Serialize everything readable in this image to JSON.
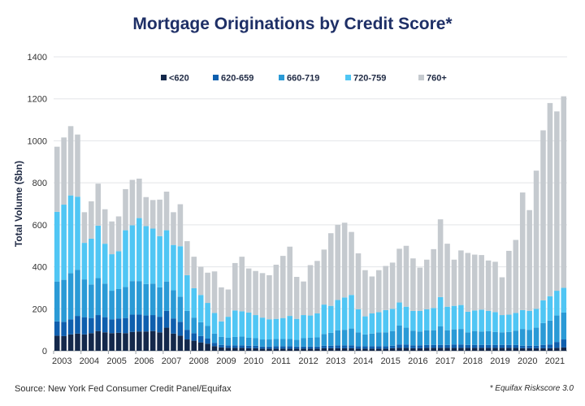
{
  "title": "Mortgage Originations by Credit Score*",
  "source": "Source: New York Fed Consumer Credit Panel/Equifax",
  "footnote": "* Equifax Riskscore 3.0",
  "chart_data": {
    "type": "bar",
    "stacked": true,
    "title": "Mortgage Originations by Credit Score*",
    "ylabel": "Total Volume ($bn)",
    "xlabel": "",
    "ylim": [
      0,
      1400
    ],
    "yticks": [
      0,
      200,
      400,
      600,
      800,
      1000,
      1200,
      1400
    ],
    "grid": "horizontal",
    "legend_position": "top",
    "x_tick_labels": [
      "2003",
      "2004",
      "2005",
      "2006",
      "2007",
      "2008",
      "2009",
      "2010",
      "2011",
      "2012",
      "2013",
      "2014",
      "2015",
      "2016",
      "2017",
      "2018",
      "2019",
      "2020",
      "2021"
    ],
    "categories": [
      "2003Q1",
      "2003Q2",
      "2003Q3",
      "2003Q4",
      "2004Q1",
      "2004Q2",
      "2004Q3",
      "2004Q4",
      "2005Q1",
      "2005Q2",
      "2005Q3",
      "2005Q4",
      "2006Q1",
      "2006Q2",
      "2006Q3",
      "2006Q4",
      "2007Q1",
      "2007Q2",
      "2007Q3",
      "2007Q4",
      "2008Q1",
      "2008Q2",
      "2008Q3",
      "2008Q4",
      "2009Q1",
      "2009Q2",
      "2009Q3",
      "2009Q4",
      "2010Q1",
      "2010Q2",
      "2010Q3",
      "2010Q4",
      "2011Q1",
      "2011Q2",
      "2011Q3",
      "2011Q4",
      "2012Q1",
      "2012Q2",
      "2012Q3",
      "2012Q4",
      "2013Q1",
      "2013Q2",
      "2013Q3",
      "2013Q4",
      "2014Q1",
      "2014Q2",
      "2014Q3",
      "2014Q4",
      "2015Q1",
      "2015Q2",
      "2015Q3",
      "2015Q4",
      "2016Q1",
      "2016Q2",
      "2016Q3",
      "2016Q4",
      "2017Q1",
      "2017Q2",
      "2017Q3",
      "2017Q4",
      "2018Q1",
      "2018Q2",
      "2018Q3",
      "2018Q4",
      "2019Q1",
      "2019Q2",
      "2019Q3",
      "2019Q4",
      "2020Q1",
      "2020Q2",
      "2020Q3",
      "2020Q4",
      "2021Q1",
      "2021Q2",
      "2021Q3"
    ],
    "series": [
      {
        "name": "<620",
        "color": "#14284b",
        "values": [
          72,
          70,
          78,
          82,
          78,
          84,
          94,
          88,
          84,
          86,
          84,
          90,
          92,
          92,
          94,
          88,
          110,
          82,
          72,
          54,
          48,
          40,
          34,
          22,
          16,
          14,
          14,
          14,
          12,
          12,
          10,
          10,
          10,
          10,
          10,
          10,
          10,
          10,
          10,
          12,
          12,
          12,
          12,
          12,
          10,
          10,
          10,
          10,
          10,
          12,
          14,
          14,
          12,
          12,
          14,
          14,
          14,
          14,
          14,
          14,
          14,
          14,
          14,
          14,
          14,
          14,
          14,
          14,
          12,
          12,
          12,
          12,
          12,
          14,
          16
        ]
      },
      {
        "name": "620-659",
        "color": "#0f5fae",
        "values": [
          68,
          68,
          72,
          84,
          82,
          72,
          76,
          72,
          66,
          68,
          72,
          82,
          80,
          76,
          76,
          74,
          80,
          72,
          66,
          46,
          36,
          30,
          24,
          16,
          12,
          12,
          12,
          12,
          12,
          12,
          10,
          10,
          12,
          12,
          12,
          10,
          10,
          10,
          10,
          12,
          12,
          14,
          14,
          14,
          12,
          12,
          12,
          12,
          12,
          12,
          16,
          16,
          14,
          14,
          14,
          14,
          14,
          14,
          16,
          16,
          14,
          14,
          14,
          14,
          14,
          14,
          14,
          14,
          12,
          12,
          12,
          16,
          18,
          28,
          38
        ]
      },
      {
        "name": "660-719",
        "color": "#2a9ad6",
        "values": [
          190,
          200,
          220,
          220,
          180,
          160,
          176,
          160,
          136,
          140,
          148,
          160,
          160,
          150,
          150,
          140,
          140,
          134,
          120,
          90,
          74,
          66,
          60,
          44,
          38,
          36,
          40,
          42,
          38,
          36,
          34,
          34,
          34,
          34,
          34,
          32,
          40,
          42,
          44,
          56,
          62,
          72,
          74,
          80,
          66,
          56,
          60,
          66,
          66,
          70,
          90,
          80,
          70,
          66,
          70,
          70,
          88,
          70,
          72,
          74,
          60,
          66,
          64,
          66,
          62,
          60,
          62,
          68,
          80,
          76,
          86,
          104,
          114,
          126,
          128
        ]
      },
      {
        "name": "720-759",
        "color": "#50c6f4",
        "values": [
          332,
          358,
          370,
          348,
          174,
          218,
          250,
          190,
          174,
          180,
          270,
          266,
          300,
          276,
          262,
          244,
          244,
          216,
          240,
          170,
          140,
          130,
          110,
          98,
          74,
          100,
          126,
          120,
          120,
          110,
          104,
          96,
          96,
          100,
          110,
          100,
          110,
          106,
          114,
          140,
          128,
          144,
          154,
          160,
          110,
          86,
          96,
          96,
          106,
          106,
          110,
          100,
          94,
          98,
          100,
          106,
          140,
          112,
          112,
          114,
          98,
          98,
          104,
          96,
          94,
          82,
          82,
          84,
          90,
          90,
          90,
          108,
          116,
          118,
          118
        ]
      },
      {
        "name": "760+",
        "color": "#c5cacf",
        "values": [
          310,
          320,
          330,
          296,
          146,
          178,
          200,
          164,
          156,
          166,
          196,
          216,
          188,
          138,
          136,
          174,
          184,
          156,
          200,
          162,
          150,
          134,
          144,
          198,
          162,
          130,
          226,
          260,
          210,
          210,
          212,
          210,
          258,
          296,
          330,
          200,
          160,
          240,
          250,
          262,
          346,
          358,
          356,
          300,
          266,
          220,
          176,
          200,
          210,
          220,
          256,
          290,
          250,
          206,
          236,
          280,
          370,
          300,
          220,
          260,
          280,
          266,
          260,
          240,
          240,
          180,
          304,
          348,
          560,
          480,
          658,
          810,
          920,
          854,
          912
        ]
      }
    ]
  }
}
